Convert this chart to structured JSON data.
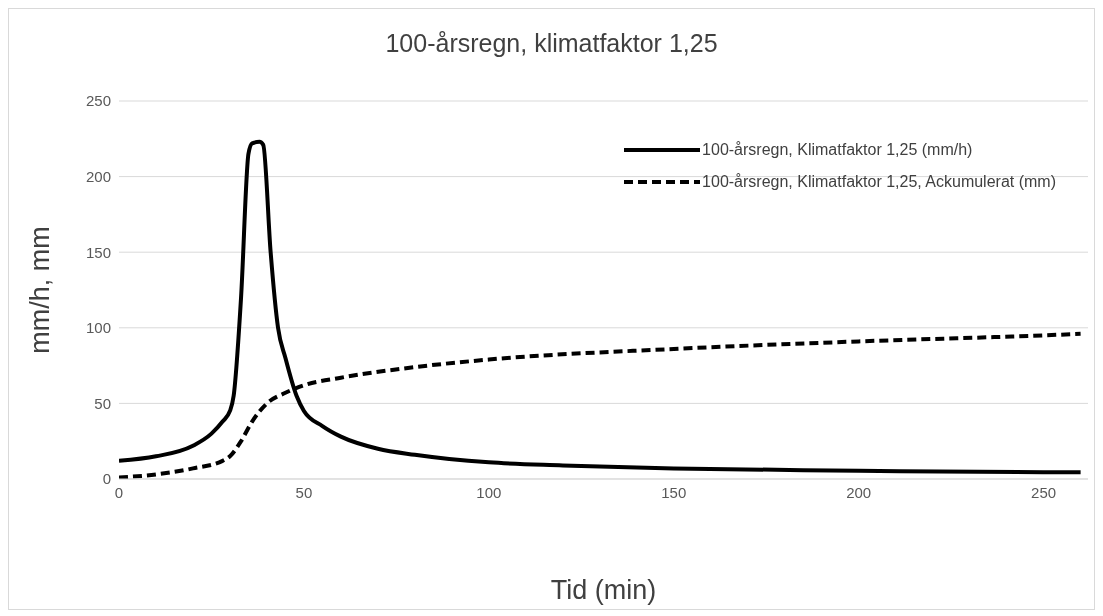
{
  "chart_data": {
    "type": "line",
    "title": "100-årsregn, klimatfaktor 1,25",
    "xlabel": "Tid (min)",
    "ylabel": "mm/h, mm",
    "xlim": [
      0,
      262
    ],
    "xticks": [
      0,
      50,
      100,
      150,
      200,
      250
    ],
    "ylim": [
      0,
      250
    ],
    "yticks": [
      0,
      50,
      100,
      150,
      200,
      250
    ],
    "grid": "y",
    "legend": "top right",
    "marker": "none",
    "series": [
      {
        "name": "100-årsregn, Klimatfaktor 1,25 (mm/h)",
        "color": "#000000",
        "line_style": "solid",
        "x": [
          0,
          10,
          20,
          25,
          28,
          30,
          31,
          33,
          35,
          36,
          38,
          39,
          41,
          43,
          45,
          48,
          50,
          55,
          60,
          70,
          80,
          100,
          120,
          150,
          200,
          250,
          260
        ],
        "values": [
          12,
          15,
          22,
          30,
          38,
          45,
          55,
          120,
          215,
          222,
          223,
          221,
          150,
          100,
          80,
          55,
          45,
          35,
          28,
          20,
          16,
          11,
          9,
          7,
          5.5,
          4.5,
          4.5
        ]
      },
      {
        "name": "100-årsregn, Klimatfaktor 1,25, Ackumulerat (mm)",
        "color": "#000000",
        "line_style": "dashed",
        "x": [
          0,
          10,
          20,
          28,
          30,
          33,
          36,
          40,
          45,
          50,
          60,
          80,
          100,
          150,
          200,
          250,
          260
        ],
        "values": [
          1,
          3,
          7,
          12,
          15,
          25,
          38,
          50,
          57,
          62,
          67,
          74,
          79,
          86,
          91,
          95,
          96
        ]
      }
    ]
  }
}
